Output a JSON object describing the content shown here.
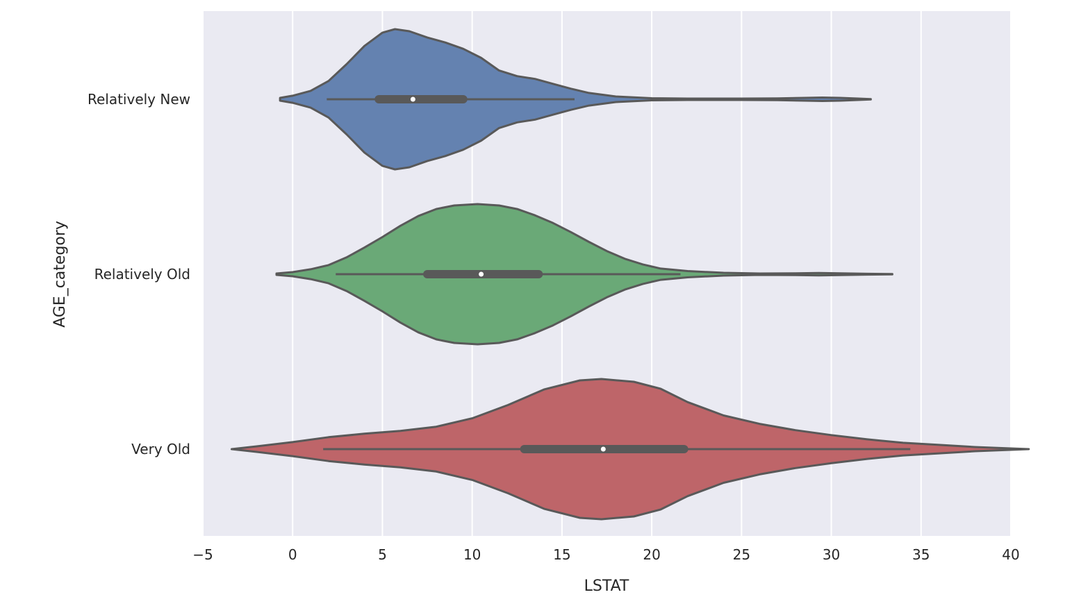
{
  "chart_data": {
    "type": "violin",
    "orientation": "horizontal",
    "xlabel": "LSTAT",
    "ylabel": "AGE_category",
    "xlim": [
      -5,
      40
    ],
    "xticks": [
      -5,
      0,
      5,
      10,
      15,
      20,
      25,
      30,
      35,
      40
    ],
    "xtick_labels": [
      "−5",
      "0",
      "5",
      "10",
      "15",
      "20",
      "25",
      "30",
      "35",
      "40"
    ],
    "grid": true,
    "background": "#EAEAF2",
    "categories": [
      "Relatively New",
      "Relatively Old",
      "Very Old"
    ],
    "series": [
      {
        "name": "Relatively New",
        "color": "#6482B0",
        "range": [
          -0.7,
          32.2
        ],
        "whisker": [
          1.9,
          15.7
        ],
        "iqr": [
          4.8,
          9.5
        ],
        "median": 6.7,
        "density": [
          [
            -0.7,
            0.02
          ],
          [
            0,
            0.05
          ],
          [
            1,
            0.12
          ],
          [
            2,
            0.26
          ],
          [
            3,
            0.5
          ],
          [
            4,
            0.76
          ],
          [
            5,
            0.95
          ],
          [
            5.7,
            1.0
          ],
          [
            6.5,
            0.97
          ],
          [
            7.5,
            0.88
          ],
          [
            8.5,
            0.81
          ],
          [
            9.5,
            0.72
          ],
          [
            10.5,
            0.59
          ],
          [
            11.5,
            0.41
          ],
          [
            12.5,
            0.33
          ],
          [
            13.5,
            0.29
          ],
          [
            14.5,
            0.22
          ],
          [
            15.5,
            0.15
          ],
          [
            16.5,
            0.09
          ],
          [
            18,
            0.04
          ],
          [
            20,
            0.015
          ],
          [
            22,
            0.01
          ],
          [
            25,
            0.01
          ],
          [
            27,
            0.012
          ],
          [
            28.5,
            0.02
          ],
          [
            29.5,
            0.025
          ],
          [
            30.5,
            0.02
          ],
          [
            31.5,
            0.01
          ],
          [
            32.2,
            0.003
          ]
        ]
      },
      {
        "name": "Relatively Old",
        "color": "#6AA977",
        "range": [
          -0.9,
          33.4
        ],
        "whisker": [
          2.4,
          21.6
        ],
        "iqr": [
          7.5,
          13.7
        ],
        "median": 10.5,
        "density": [
          [
            -0.9,
            0.01
          ],
          [
            0,
            0.03
          ],
          [
            1,
            0.07
          ],
          [
            2,
            0.13
          ],
          [
            3,
            0.24
          ],
          [
            4,
            0.38
          ],
          [
            5,
            0.53
          ],
          [
            6,
            0.69
          ],
          [
            7,
            0.83
          ],
          [
            8,
            0.93
          ],
          [
            9,
            0.98
          ],
          [
            10.3,
            1.0
          ],
          [
            11.5,
            0.98
          ],
          [
            12.5,
            0.93
          ],
          [
            13.5,
            0.84
          ],
          [
            14.5,
            0.73
          ],
          [
            15.5,
            0.6
          ],
          [
            16.5,
            0.46
          ],
          [
            17.5,
            0.33
          ],
          [
            18.5,
            0.22
          ],
          [
            19.5,
            0.14
          ],
          [
            20.5,
            0.08
          ],
          [
            22,
            0.045
          ],
          [
            24,
            0.02
          ],
          [
            26,
            0.01
          ],
          [
            28,
            0.012
          ],
          [
            29.3,
            0.018
          ],
          [
            30.5,
            0.012
          ],
          [
            32,
            0.006
          ],
          [
            33.4,
            0.002
          ]
        ]
      },
      {
        "name": "Very Old",
        "color": "#BE6569",
        "range": [
          -3.4,
          41
        ],
        "whisker": [
          1.7,
          34.4
        ],
        "iqr": [
          12.9,
          21.8
        ],
        "median": 17.3,
        "density": [
          [
            -3.4,
            0.0
          ],
          [
            -2,
            0.04
          ],
          [
            0,
            0.1
          ],
          [
            2,
            0.17
          ],
          [
            4,
            0.22
          ],
          [
            6,
            0.26
          ],
          [
            8,
            0.32
          ],
          [
            10,
            0.44
          ],
          [
            12,
            0.63
          ],
          [
            14,
            0.85
          ],
          [
            16,
            0.98
          ],
          [
            17.2,
            1.0
          ],
          [
            19,
            0.96
          ],
          [
            20.5,
            0.86
          ],
          [
            22,
            0.67
          ],
          [
            24,
            0.48
          ],
          [
            26,
            0.36
          ],
          [
            28,
            0.27
          ],
          [
            30,
            0.2
          ],
          [
            32,
            0.14
          ],
          [
            34,
            0.09
          ],
          [
            36,
            0.06
          ],
          [
            38,
            0.03
          ],
          [
            40,
            0.01
          ],
          [
            41,
            0.0
          ]
        ]
      }
    ]
  }
}
